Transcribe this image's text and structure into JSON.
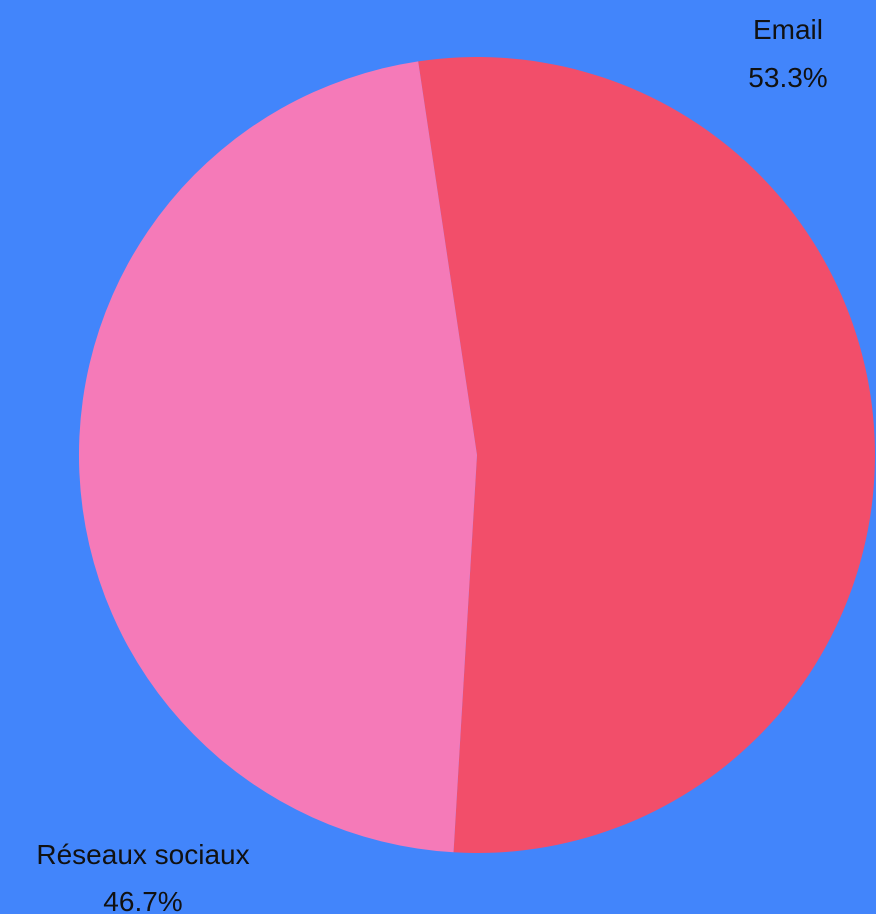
{
  "chart_data": {
    "type": "pie",
    "slices": [
      {
        "label": "Email",
        "value": 53.3,
        "display": "53.3%",
        "color": "#F24E6A"
      },
      {
        "label": "Réseaux sociaux",
        "value": 46.7,
        "display": "46.7%",
        "color": "#F57AB8"
      }
    ],
    "background": "#4285FB",
    "legend": "none"
  }
}
